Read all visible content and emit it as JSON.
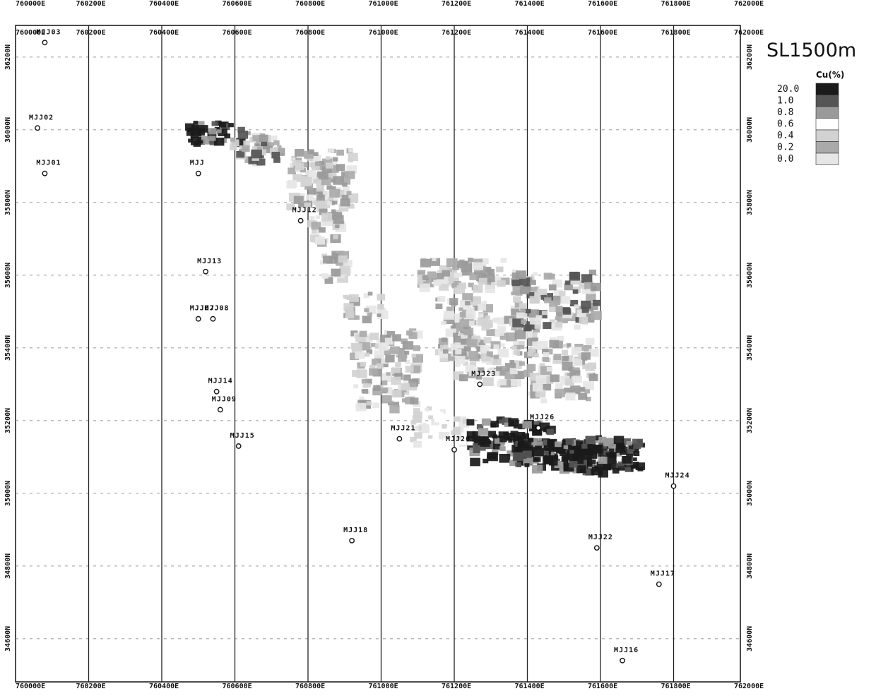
{
  "map": {
    "title": "SL1500m",
    "legend": {
      "heading": "Cu(%)",
      "levels": [
        "20.0",
        "1.0",
        "0.8",
        "0.6",
        "0.4",
        "0.2",
        "0.0"
      ],
      "colors": [
        "#1a1a1a",
        "#555555",
        "#9a9a9a",
        "#ffffff",
        "#d2d2d2",
        "#aaaaaa",
        "#e6e6e6"
      ]
    },
    "x_ticks_top_outer": [
      "760000E",
      "760200E",
      "760400E",
      "760600E",
      "760800E",
      "761000E",
      "761200E",
      "761400E",
      "761600E",
      "761800E",
      "762000E"
    ],
    "x_ticks": [
      "760000E",
      "760200E",
      "760400E",
      "760600E",
      "760800E",
      "761000E",
      "761200E",
      "761400E",
      "761600E",
      "761800E",
      "762000E"
    ],
    "y_ticks": [
      "36200N",
      "36000N",
      "35800N",
      "35600N",
      "35400N",
      "35200N",
      "35000N",
      "34800N",
      "34600N",
      "34400N"
    ],
    "easting_range": [
      760000,
      762000
    ],
    "northing_range": [
      34350,
      36260
    ],
    "drill_holes": [
      {
        "name": "MJJ03",
        "e": 760080,
        "n": 36240
      },
      {
        "name": "MJJ02",
        "e": 760060,
        "n": 36005
      },
      {
        "name": "MJJ01",
        "e": 760080,
        "n": 35880
      },
      {
        "name": "MJJ",
        "e": 760500,
        "n": 35880
      },
      {
        "name": "MJJ12",
        "e": 760780,
        "n": 35750
      },
      {
        "name": "MJJ13",
        "e": 760520,
        "n": 35610
      },
      {
        "name": "MJJ07",
        "e": 760500,
        "n": 35480
      },
      {
        "name": "MJJ08",
        "e": 760540,
        "n": 35480
      },
      {
        "name": "MJJ14",
        "e": 760550,
        "n": 35280
      },
      {
        "name": "MJJ09",
        "e": 760560,
        "n": 35230
      },
      {
        "name": "MJJ15",
        "e": 760610,
        "n": 35130
      },
      {
        "name": "MJJ23",
        "e": 761270,
        "n": 35300
      },
      {
        "name": "MJJ21",
        "e": 761050,
        "n": 35150
      },
      {
        "name": "MJJ20",
        "e": 761200,
        "n": 35120
      },
      {
        "name": "MJJ26",
        "e": 761430,
        "n": 35180
      },
      {
        "name": "MJJ24",
        "e": 761800,
        "n": 35020
      },
      {
        "name": "MJJ18",
        "e": 760920,
        "n": 34870
      },
      {
        "name": "MJJ22",
        "e": 761590,
        "n": 34850
      },
      {
        "name": "MJJ17",
        "e": 761760,
        "n": 34750
      },
      {
        "name": "MJJ16",
        "e": 761660,
        "n": 34540
      }
    ]
  }
}
